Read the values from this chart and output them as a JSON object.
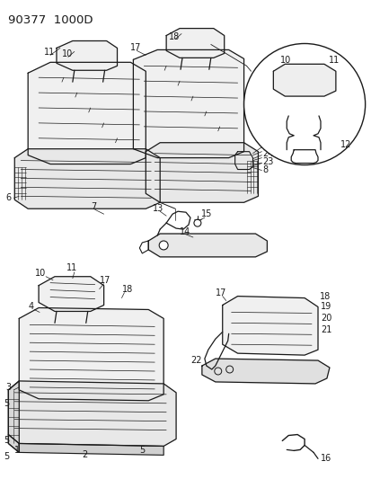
{
  "title": "90377  1000D",
  "background_color": "#ffffff",
  "line_color": "#1a1a1a",
  "text_color": "#1a1a1a",
  "fig_width": 4.14,
  "fig_height": 5.33,
  "dpi": 100,
  "title_fontsize": 9.5,
  "label_fontsize": 7
}
